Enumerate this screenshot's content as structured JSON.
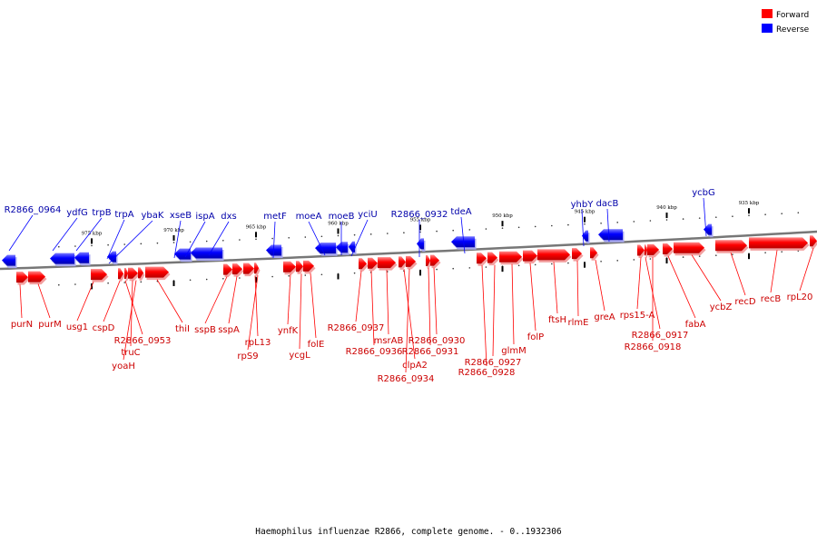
{
  "caption": "Haemophilus influenzae R2866, complete genome. - 0..1932306",
  "legend": [
    {
      "label": "Forward",
      "color": "#ff0000"
    },
    {
      "label": "Reverse",
      "color": "#0000ff"
    }
  ],
  "colors": {
    "forward": "#ff0000",
    "forward_text": "#cc0000",
    "reverse": "#0000ff",
    "reverse_text": "#0000aa",
    "backbone": "#777777"
  },
  "ticks": [
    {
      "label": "975 kbp",
      "kbp": 975
    },
    {
      "label": "970 kbp",
      "kbp": 970
    },
    {
      "label": "965 kbp",
      "kbp": 965
    },
    {
      "label": "960 kbp",
      "kbp": 960
    },
    {
      "label": "955 kbp",
      "kbp": 955
    },
    {
      "label": "950 kbp",
      "kbp": 950
    },
    {
      "label": "945 kbp",
      "kbp": 945
    },
    {
      "label": "940 kbp",
      "kbp": 940
    },
    {
      "label": "935 kbp",
      "kbp": 935
    }
  ],
  "reverse_genes": [
    "R2866_0964",
    "ydfG",
    "trpB",
    "trpA",
    "ybaK",
    "xseB",
    "ispA",
    "dxs",
    "metF",
    "moeA",
    "moeB",
    "yciU",
    "R2866_0932",
    "tdeA",
    "yhbY",
    "dacB",
    "ycbG"
  ],
  "forward_genes": [
    "purN",
    "purM",
    "usg1",
    "cspD",
    "R2866_0953",
    "truC",
    "yoaH",
    "thiI",
    "sspB",
    "sspA",
    "rpL13",
    "rpS9",
    "ynfK",
    "ycgL",
    "folE",
    "R2866_0937",
    "R2866_0936",
    "msrAB",
    "clpA2",
    "R2866_0934",
    "R2866_0931",
    "R2866_0930",
    "R2866_0928",
    "R2866_0927",
    "glmM",
    "folP",
    "ftsH",
    "rlmE",
    "greA",
    "rps15-A",
    "R2866_0917",
    "R2866_0918",
    "fabA",
    "ycbZ",
    "recD",
    "recB",
    "rpL20"
  ]
}
